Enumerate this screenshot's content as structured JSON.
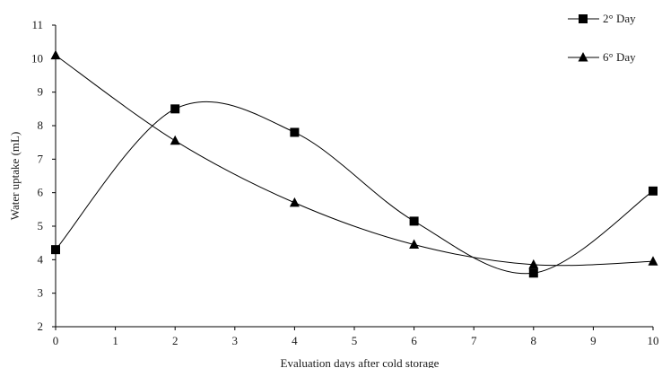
{
  "chart_data": {
    "type": "line",
    "title": "",
    "xlabel": "Evaluation days after cold storage",
    "ylabel": "Water uptake (mL)",
    "xlim": [
      0,
      10
    ],
    "ylim": [
      2,
      11
    ],
    "xticks": [
      "0",
      "1",
      "2",
      "3",
      "4",
      "5",
      "6",
      "7",
      "8",
      "9",
      "10"
    ],
    "yticks": [
      "2",
      "3",
      "4",
      "5",
      "6",
      "7",
      "8",
      "9",
      "10",
      "11"
    ],
    "grid": false,
    "legend_position": "top-right",
    "smooth": true,
    "series": [
      {
        "name": "2° Day",
        "marker": "square",
        "color": "#000000",
        "x": [
          0,
          2,
          4,
          6,
          8,
          10
        ],
        "y": [
          4.3,
          8.5,
          7.8,
          5.15,
          3.6,
          6.05
        ]
      },
      {
        "name": "6° Day",
        "marker": "triangle",
        "color": "#000000",
        "x": [
          0,
          2,
          4,
          6,
          8,
          10
        ],
        "y": [
          10.1,
          7.55,
          5.7,
          4.45,
          3.85,
          3.95
        ]
      }
    ]
  }
}
